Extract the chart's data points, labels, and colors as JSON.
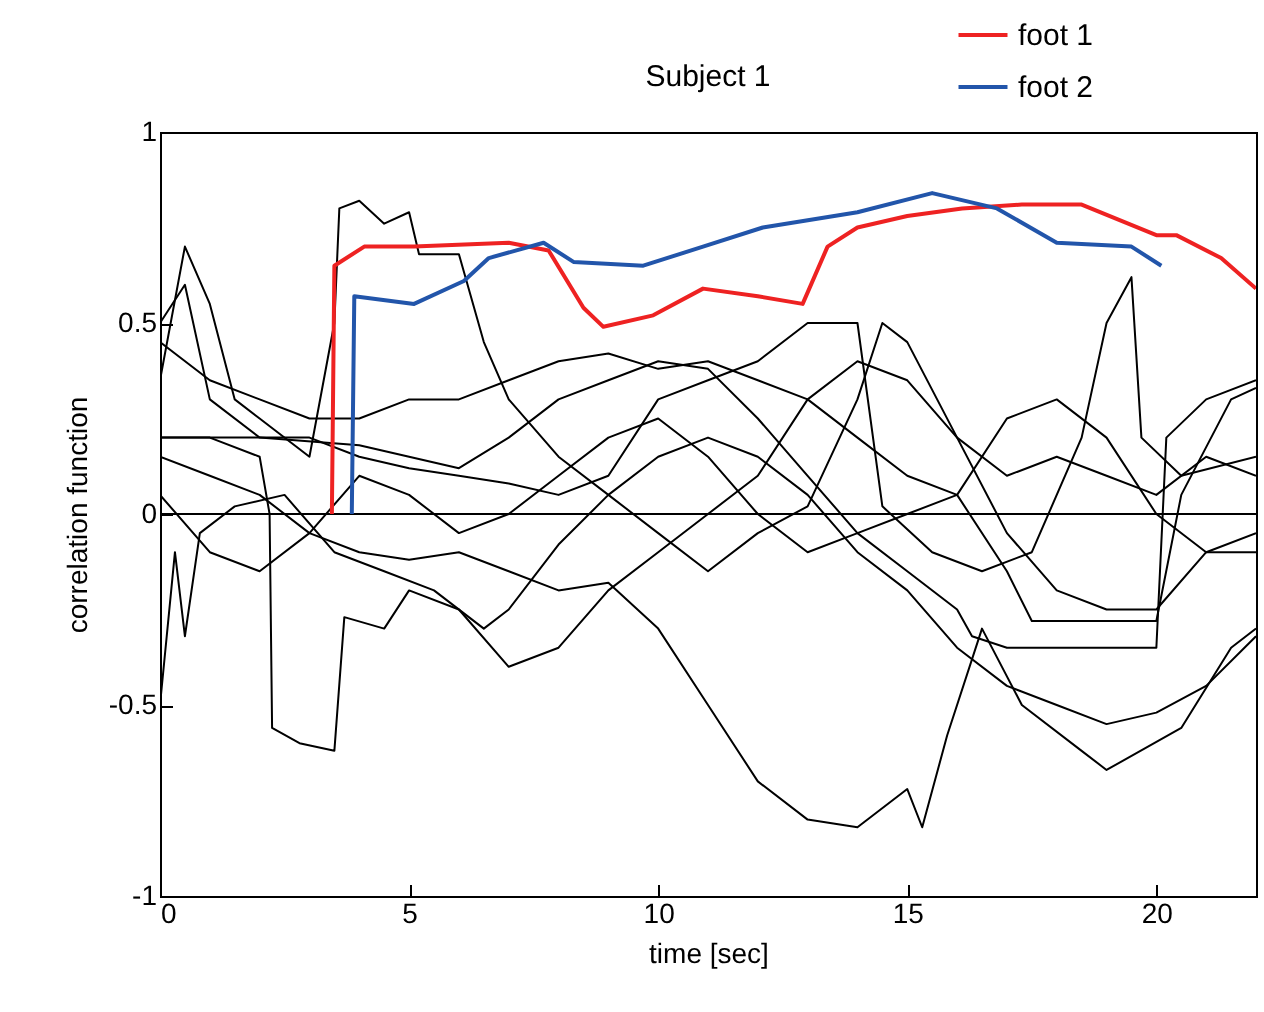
{
  "chart_data": {
    "type": "line",
    "title": "Subject 1",
    "xlabel": "time [sec]",
    "ylabel": "correlation function",
    "xlim": [
      0,
      22
    ],
    "xticks": [
      0,
      5,
      10,
      15,
      20
    ],
    "ylim": [
      -1,
      1
    ],
    "yticks": [
      -1,
      -0.5,
      0,
      0.5,
      1
    ],
    "legend": "top right",
    "grid": false,
    "ref_lines": [
      {
        "axis": "y",
        "value": 0
      }
    ],
    "series": [
      {
        "color": "#000000",
        "x": [
          0,
          1,
          2,
          3,
          4,
          5,
          6,
          7,
          8,
          9,
          10,
          11,
          12,
          13,
          14,
          15,
          15.3,
          15.8,
          16.5,
          17.3,
          18.5,
          19,
          20.5,
          21.5,
          22
        ],
        "values": [
          0.15,
          0.1,
          0.05,
          -0.05,
          -0.1,
          -0.12,
          -0.1,
          -0.15,
          -0.2,
          -0.18,
          -0.3,
          -0.5,
          -0.7,
          -0.8,
          -0.82,
          -0.72,
          -0.82,
          -0.58,
          -0.3,
          -0.5,
          -0.62,
          -0.67,
          -0.56,
          -0.35,
          -0.3
        ]
      },
      {
        "color": "#000000",
        "x": [
          0,
          0.3,
          0.5,
          0.8,
          1.5,
          2.5,
          3.5,
          4.5,
          5.5,
          6.5,
          7,
          8,
          9,
          10,
          11,
          12,
          13,
          14,
          15,
          16,
          17,
          18,
          19,
          20,
          21,
          22
        ],
        "values": [
          -0.5,
          -0.1,
          -0.32,
          -0.05,
          0.02,
          0.05,
          -0.1,
          -0.15,
          -0.2,
          -0.3,
          -0.25,
          -0.08,
          0.05,
          0.15,
          0.2,
          0.15,
          0.05,
          -0.1,
          -0.2,
          -0.35,
          -0.45,
          -0.5,
          -0.55,
          -0.52,
          -0.45,
          -0.32
        ]
      },
      {
        "color": "#000000",
        "x": [
          0,
          1,
          2,
          2.2,
          2.25,
          2.8,
          3.5,
          3.7,
          4.5,
          5,
          6,
          7,
          8,
          9,
          10,
          11,
          12,
          13,
          14,
          15,
          16,
          17,
          18,
          19,
          20,
          21,
          22
        ],
        "values": [
          0.2,
          0.2,
          0.15,
          0,
          -0.56,
          -0.6,
          -0.62,
          -0.27,
          -0.3,
          -0.2,
          -0.25,
          -0.4,
          -0.35,
          -0.2,
          -0.1,
          0,
          0.1,
          0.3,
          0.4,
          0.35,
          0.2,
          0.1,
          0.15,
          0.1,
          0.05,
          0.15,
          0.1
        ]
      },
      {
        "color": "#000000",
        "x": [
          0,
          0.5,
          1,
          1.5,
          2,
          3,
          3.5,
          3.6,
          4,
          4.5,
          5,
          5.2,
          6,
          6.5,
          7,
          8,
          9,
          10,
          11,
          12,
          13,
          14,
          14.5,
          15,
          16,
          17,
          18,
          19,
          20,
          21,
          22
        ],
        "values": [
          0.35,
          0.7,
          0.55,
          0.3,
          0.25,
          0.15,
          0.5,
          0.8,
          0.82,
          0.76,
          0.79,
          0.68,
          0.68,
          0.45,
          0.3,
          0.15,
          0.05,
          -0.05,
          -0.15,
          -0.05,
          0.02,
          0.3,
          0.5,
          0.45,
          0.2,
          -0.05,
          -0.2,
          -0.25,
          -0.25,
          -0.1,
          -0.05
        ]
      },
      {
        "color": "#000000",
        "x": [
          0,
          0.5,
          1,
          2,
          3,
          4,
          5,
          6,
          7,
          8,
          9,
          10,
          11,
          12,
          13,
          14,
          14.5,
          15.5,
          16.5,
          17.5,
          18.5,
          19,
          19.5,
          19.7,
          20.5,
          22
        ],
        "values": [
          0.5,
          0.6,
          0.3,
          0.2,
          0.2,
          0.15,
          0.12,
          0.1,
          0.08,
          0.05,
          0.1,
          0.3,
          0.35,
          0.4,
          0.5,
          0.5,
          0.02,
          -0.1,
          -0.15,
          -0.1,
          0.2,
          0.5,
          0.62,
          0.2,
          0.1,
          0.15
        ]
      },
      {
        "color": "#000000",
        "x": [
          0,
          2,
          4,
          5,
          6,
          7,
          8,
          9,
          10,
          11,
          12,
          13,
          14,
          15,
          16,
          16.3,
          17,
          20,
          20.2,
          21,
          22
        ],
        "values": [
          0.2,
          0.2,
          0.18,
          0.15,
          0.12,
          0.2,
          0.3,
          0.35,
          0.4,
          0.38,
          0.25,
          0.1,
          -0.05,
          -0.15,
          -0.25,
          -0.32,
          -0.35,
          -0.35,
          0.2,
          0.3,
          0.35
        ]
      },
      {
        "color": "#000000",
        "x": [
          0,
          1,
          2,
          3,
          4,
          5,
          6,
          7,
          8,
          9,
          10,
          11,
          12,
          13,
          14,
          15,
          16,
          17,
          18,
          19,
          20,
          21,
          22
        ],
        "values": [
          0.05,
          -0.1,
          -0.15,
          -0.05,
          0.1,
          0.05,
          -0.05,
          0,
          0.1,
          0.2,
          0.25,
          0.15,
          0,
          -0.1,
          -0.05,
          0,
          0.05,
          0.25,
          0.3,
          0.2,
          0,
          -0.1,
          -0.1
        ]
      },
      {
        "color": "#000000",
        "x": [
          0,
          1,
          2,
          3,
          4,
          5,
          6,
          7,
          8,
          9,
          10,
          11,
          12,
          13,
          14,
          15,
          16,
          17,
          17.5,
          20,
          20.5,
          21.5,
          22
        ],
        "values": [
          0.45,
          0.35,
          0.3,
          0.25,
          0.25,
          0.3,
          0.3,
          0.35,
          0.4,
          0.42,
          0.38,
          0.4,
          0.35,
          0.3,
          0.2,
          0.1,
          0.05,
          -0.15,
          -0.28,
          -0.28,
          0.05,
          0.3,
          0.33
        ]
      },
      {
        "name": "foot 1",
        "color": "#ee2222",
        "x": [
          3.45,
          3.5,
          4.1,
          5.1,
          7,
          7.8,
          8.5,
          8.9,
          9.9,
          10.9,
          12,
          12.9,
          13.4,
          14,
          15,
          16.1,
          17.3,
          18.5,
          20,
          20.4,
          21.3,
          22
        ],
        "values": [
          0,
          0.65,
          0.7,
          0.7,
          0.71,
          0.69,
          0.54,
          0.49,
          0.52,
          0.59,
          0.57,
          0.55,
          0.7,
          0.75,
          0.78,
          0.8,
          0.81,
          0.81,
          0.73,
          0.73,
          0.67,
          0.59
        ]
      },
      {
        "name": "foot 2",
        "color": "#2255aa",
        "x": [
          3.85,
          3.9,
          5.1,
          6.1,
          6.6,
          7.7,
          8.3,
          9.7,
          10.9,
          12.1,
          14,
          15.5,
          16.8,
          18,
          19.5,
          20.1
        ],
        "values": [
          0,
          0.57,
          0.55,
          0.61,
          0.67,
          0.71,
          0.66,
          0.65,
          0.7,
          0.75,
          0.79,
          0.84,
          0.8,
          0.71,
          0.7,
          0.65
        ]
      }
    ]
  }
}
